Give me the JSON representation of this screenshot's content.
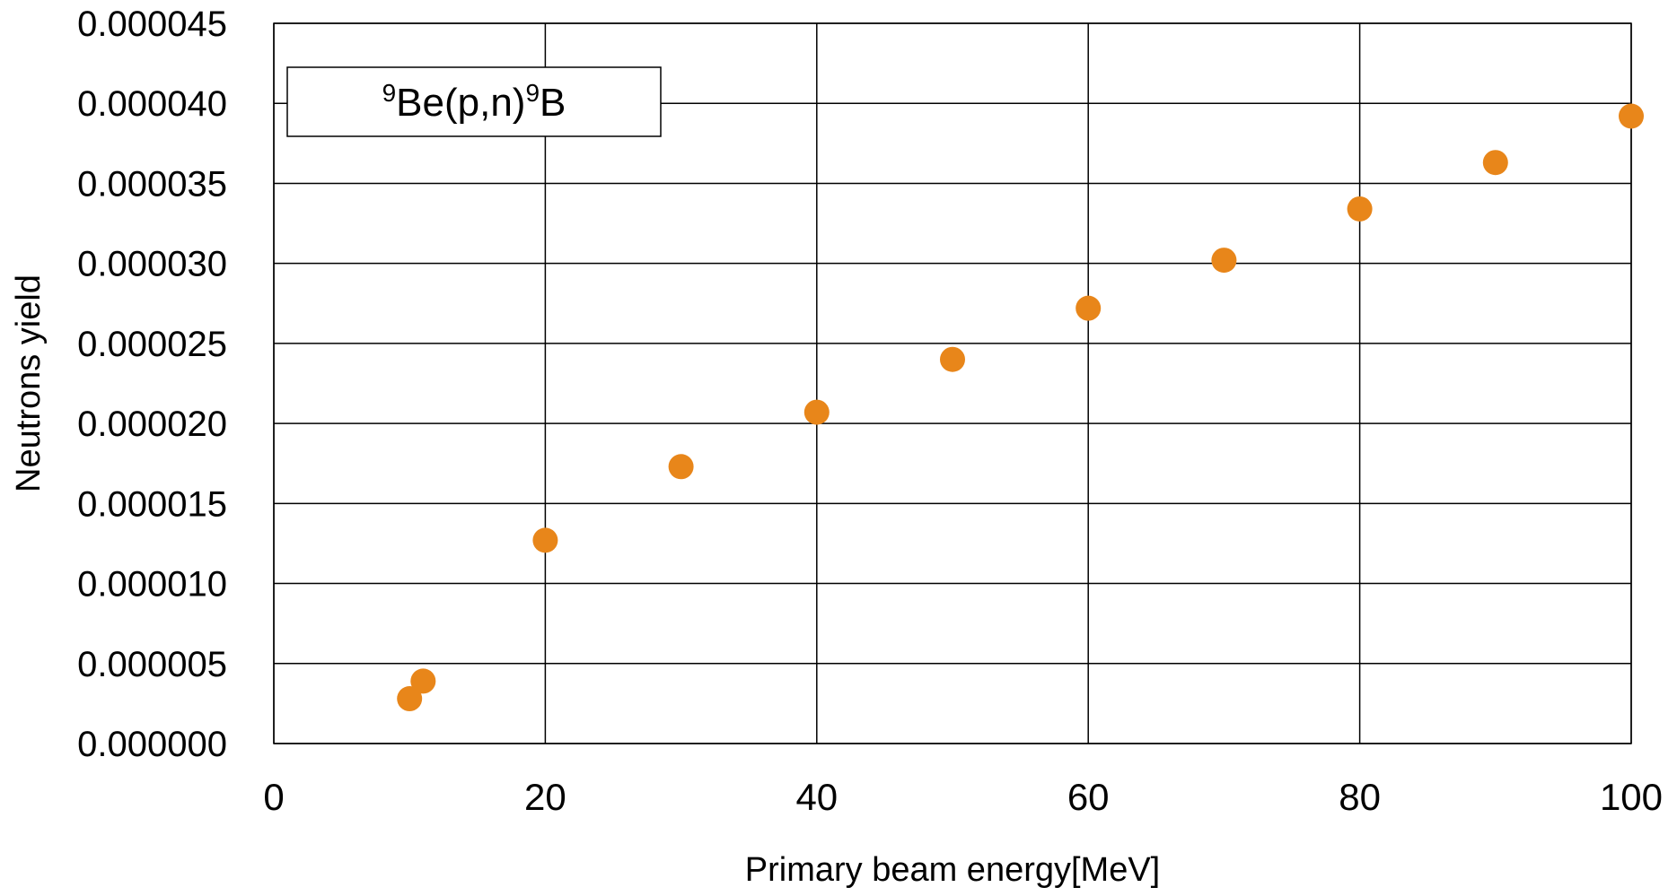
{
  "chart_data": {
    "type": "scatter",
    "xlabel": "Primary beam energy[MeV]",
    "ylabel": "Neutrons yield",
    "xlim": [
      0,
      100
    ],
    "ylim": [
      0,
      4.5e-05
    ],
    "x_ticks": [
      "0",
      "20",
      "40",
      "60",
      "80",
      "100"
    ],
    "y_ticks": [
      "0.000000",
      "0.000005",
      "0.000010",
      "0.000015",
      "0.000020",
      "0.000025",
      "0.000030",
      "0.000035",
      "0.000040",
      "0.000045"
    ],
    "grid": true,
    "legend_placement": "top-left",
    "annotation": {
      "sup1": "9",
      "part1": "Be(p,n)",
      "sup2": "9",
      "part2": "B"
    },
    "series": [
      {
        "color": "#E8861A",
        "points": [
          {
            "x": 10,
            "y": 2.8e-06
          },
          {
            "x": 11,
            "y": 3.9e-06
          },
          {
            "x": 20,
            "y": 1.27e-05
          },
          {
            "x": 30,
            "y": 1.73e-05
          },
          {
            "x": 40,
            "y": 2.07e-05
          },
          {
            "x": 50,
            "y": 2.4e-05
          },
          {
            "x": 60,
            "y": 2.72e-05
          },
          {
            "x": 70,
            "y": 3.02e-05
          },
          {
            "x": 80,
            "y": 3.34e-05
          },
          {
            "x": 90,
            "y": 3.63e-05
          },
          {
            "x": 100,
            "y": 3.92e-05
          }
        ]
      }
    ]
  }
}
